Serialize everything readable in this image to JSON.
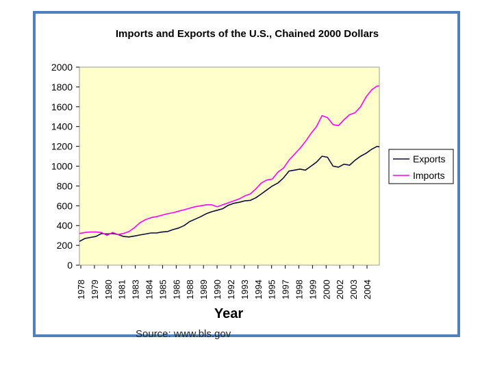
{
  "chart_data": {
    "type": "line",
    "title": "Imports and Exports of the U.S., Chained 2000 Dollars",
    "xlabel": "Year",
    "ylabel": "",
    "ylim": [
      0,
      2000
    ],
    "yticks": [
      0,
      200,
      400,
      600,
      800,
      1000,
      1200,
      1400,
      1600,
      1800,
      2000
    ],
    "xlim": [
      1978,
      2005.2
    ],
    "xtick_labels": [
      "1978",
      "1979",
      "1980",
      "1981",
      "1983",
      "1984",
      "1985",
      "1986",
      "1988",
      "1989",
      "1990",
      "1992",
      "1993",
      "1994",
      "1995",
      "1997",
      "1998",
      "1999",
      "2000",
      "2002",
      "2003",
      "2004"
    ],
    "grid": false,
    "legend": "right",
    "x": [
      1978,
      1978.5,
      1979,
      1979.5,
      1980,
      1980.5,
      1981,
      1981.5,
      1982,
      1982.5,
      1983,
      1983.5,
      1984,
      1984.5,
      1985,
      1985.5,
      1986,
      1986.5,
      1987,
      1987.5,
      1988,
      1988.5,
      1989,
      1989.5,
      1990,
      1990.5,
      1991,
      1991.5,
      1992,
      1992.5,
      1993,
      1993.5,
      1994,
      1994.5,
      1995,
      1995.5,
      1996,
      1996.5,
      1997,
      1997.5,
      1998,
      1998.5,
      1999,
      1999.5,
      2000,
      2000.5,
      2001,
      2001.5,
      2002,
      2002.5,
      2003,
      2003.5,
      2004,
      2004.5,
      2005,
      2005.2
    ],
    "series": [
      {
        "name": "Exports",
        "color": "#0a0a3c",
        "values": [
          240,
          270,
          280,
          290,
          320,
          315,
          320,
          310,
          290,
          285,
          295,
          305,
          315,
          325,
          325,
          335,
          340,
          360,
          375,
          400,
          440,
          465,
          490,
          520,
          540,
          555,
          570,
          605,
          625,
          635,
          650,
          655,
          680,
          720,
          760,
          800,
          830,
          880,
          950,
          960,
          970,
          960,
          1000,
          1040,
          1100,
          1090,
          1000,
          990,
          1020,
          1010,
          1060,
          1100,
          1130,
          1170,
          1200,
          1195
        ]
      },
      {
        "name": "Imports",
        "color": "#ff00ff",
        "values": [
          320,
          330,
          335,
          335,
          330,
          300,
          330,
          310,
          320,
          340,
          380,
          430,
          460,
          480,
          490,
          505,
          520,
          530,
          545,
          560,
          575,
          590,
          600,
          610,
          610,
          590,
          610,
          630,
          650,
          670,
          700,
          720,
          770,
          830,
          860,
          870,
          940,
          980,
          1060,
          1120,
          1180,
          1250,
          1330,
          1400,
          1510,
          1490,
          1420,
          1410,
          1470,
          1520,
          1540,
          1600,
          1700,
          1770,
          1810,
          1810
        ]
      }
    ]
  },
  "source_text": "Source: www.bls.gov"
}
